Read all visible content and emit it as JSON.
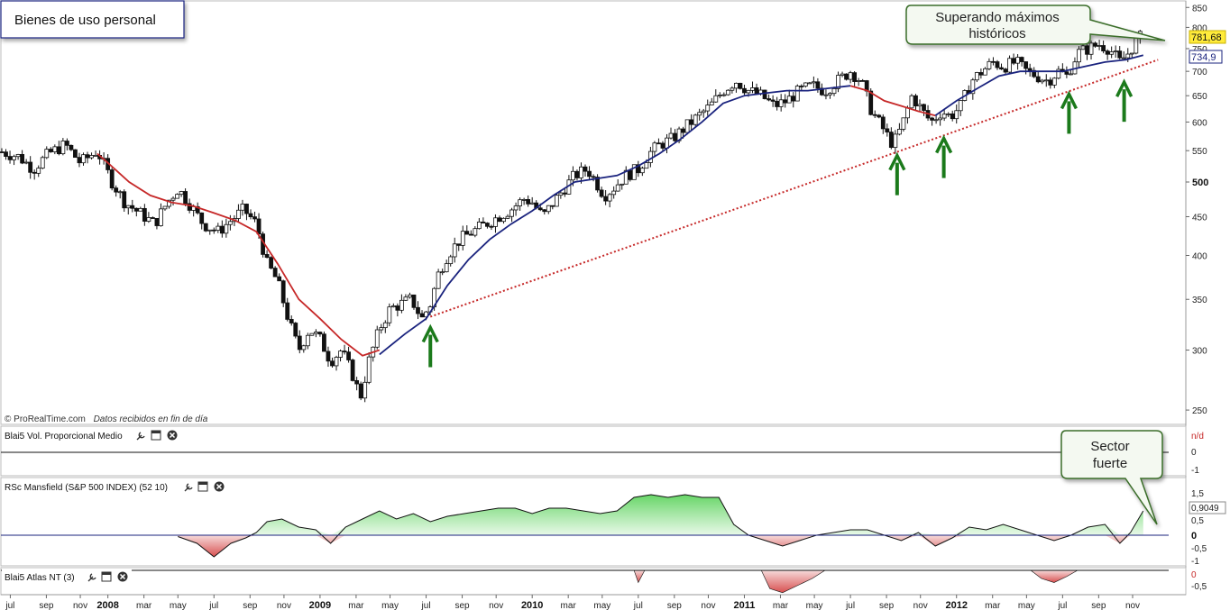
{
  "chart_data": {
    "type": "candlestick",
    "title": "Bienes de uso personal",
    "source_note": "© ProRealTime.com",
    "source_note2": "Datos recibidos en fin de día",
    "price_axis": {
      "scale": "log",
      "ylim": [
        240,
        860
      ],
      "ticks": [
        250,
        300,
        350,
        400,
        450,
        500,
        550,
        600,
        650,
        700,
        750,
        800,
        850
      ],
      "tick_labels": [
        "250",
        "300",
        "350",
        "400",
        "450",
        "500",
        "550",
        "600",
        "650",
        "700",
        "750",
        "800",
        "850"
      ],
      "bold_ticks": [
        "500"
      ]
    },
    "last_price": {
      "label": "781,68",
      "value": 781.68,
      "color": "#ffeb3b"
    },
    "ma_value": {
      "label": "734,9",
      "value": 734.9,
      "color": "#1a237e"
    },
    "x_axis": {
      "start": 2007.5,
      "end": 2013.0,
      "labels": [
        {
          "t": 2007.54,
          "text": "jul"
        },
        {
          "t": 2007.71,
          "text": "sep"
        },
        {
          "t": 2007.87,
          "text": "nov"
        },
        {
          "t": 2008.0,
          "text": "2008",
          "bold": true
        },
        {
          "t": 2008.17,
          "text": "mar"
        },
        {
          "t": 2008.33,
          "text": "may"
        },
        {
          "t": 2008.5,
          "text": "jul"
        },
        {
          "t": 2008.67,
          "text": "sep"
        },
        {
          "t": 2008.83,
          "text": "nov"
        },
        {
          "t": 2009.0,
          "text": "2009",
          "bold": true
        },
        {
          "t": 2009.17,
          "text": "mar"
        },
        {
          "t": 2009.33,
          "text": "may"
        },
        {
          "t": 2009.5,
          "text": "jul"
        },
        {
          "t": 2009.67,
          "text": "sep"
        },
        {
          "t": 2009.83,
          "text": "nov"
        },
        {
          "t": 2010.0,
          "text": "2010",
          "bold": true
        },
        {
          "t": 2010.17,
          "text": "mar"
        },
        {
          "t": 2010.33,
          "text": "may"
        },
        {
          "t": 2010.5,
          "text": "jul"
        },
        {
          "t": 2010.67,
          "text": "sep"
        },
        {
          "t": 2010.83,
          "text": "nov"
        },
        {
          "t": 2011.0,
          "text": "2011",
          "bold": true
        },
        {
          "t": 2011.17,
          "text": "mar"
        },
        {
          "t": 2011.33,
          "text": "may"
        },
        {
          "t": 2011.5,
          "text": "jul"
        },
        {
          "t": 2011.67,
          "text": "sep"
        },
        {
          "t": 2011.83,
          "text": "nov"
        },
        {
          "t": 2012.0,
          "text": "2012",
          "bold": true
        },
        {
          "t": 2012.17,
          "text": "mar"
        },
        {
          "t": 2012.33,
          "text": "may"
        },
        {
          "t": 2012.5,
          "text": "jul"
        },
        {
          "t": 2012.67,
          "text": "sep"
        },
        {
          "t": 2012.83,
          "text": "nov"
        }
      ]
    },
    "price_path": [
      [
        2007.5,
        548
      ],
      [
        2007.58,
        540
      ],
      [
        2007.65,
        520
      ],
      [
        2007.72,
        545
      ],
      [
        2007.8,
        560
      ],
      [
        2007.87,
        530
      ],
      [
        2007.95,
        550
      ],
      [
        2008.02,
        500
      ],
      [
        2008.08,
        470
      ],
      [
        2008.15,
        455
      ],
      [
        2008.22,
        440
      ],
      [
        2008.28,
        470
      ],
      [
        2008.33,
        490
      ],
      [
        2008.38,
        470
      ],
      [
        2008.45,
        440
      ],
      [
        2008.52,
        430
      ],
      [
        2008.58,
        445
      ],
      [
        2008.64,
        460
      ],
      [
        2008.7,
        440
      ],
      [
        2008.75,
        390
      ],
      [
        2008.8,
        370
      ],
      [
        2008.85,
        330
      ],
      [
        2008.9,
        300
      ],
      [
        2008.95,
        320
      ],
      [
        2009.0,
        310
      ],
      [
        2009.05,
        290
      ],
      [
        2009.1,
        300
      ],
      [
        2009.15,
        280
      ],
      [
        2009.19,
        260
      ],
      [
        2009.23,
        290
      ],
      [
        2009.28,
        320
      ],
      [
        2009.33,
        340
      ],
      [
        2009.38,
        345
      ],
      [
        2009.43,
        350
      ],
      [
        2009.48,
        330
      ],
      [
        2009.52,
        345
      ],
      [
        2009.56,
        380
      ],
      [
        2009.6,
        400
      ],
      [
        2009.66,
        420
      ],
      [
        2009.72,
        430
      ],
      [
        2009.78,
        440
      ],
      [
        2009.84,
        450
      ],
      [
        2009.9,
        460
      ],
      [
        2009.96,
        475
      ],
      [
        2010.0,
        470
      ],
      [
        2010.05,
        450
      ],
      [
        2010.1,
        470
      ],
      [
        2010.15,
        490
      ],
      [
        2010.2,
        510
      ],
      [
        2010.26,
        520
      ],
      [
        2010.3,
        500
      ],
      [
        2010.34,
        480
      ],
      [
        2010.38,
        490
      ],
      [
        2010.44,
        510
      ],
      [
        2010.5,
        520
      ],
      [
        2010.55,
        545
      ],
      [
        2010.6,
        560
      ],
      [
        2010.66,
        570
      ],
      [
        2010.72,
        590
      ],
      [
        2010.78,
        610
      ],
      [
        2010.84,
        630
      ],
      [
        2010.9,
        660
      ],
      [
        2010.96,
        680
      ],
      [
        2011.02,
        660
      ],
      [
        2011.08,
        650
      ],
      [
        2011.14,
        630
      ],
      [
        2011.2,
        640
      ],
      [
        2011.26,
        660
      ],
      [
        2011.32,
        670
      ],
      [
        2011.38,
        660
      ],
      [
        2011.44,
        680
      ],
      [
        2011.5,
        700
      ],
      [
        2011.55,
        680
      ],
      [
        2011.6,
        620
      ],
      [
        2011.65,
        590
      ],
      [
        2011.7,
        560
      ],
      [
        2011.74,
        590
      ],
      [
        2011.79,
        650
      ],
      [
        2011.84,
        620
      ],
      [
        2011.88,
        600
      ],
      [
        2011.93,
        620
      ],
      [
        2011.97,
        610
      ],
      [
        2012.02,
        630
      ],
      [
        2012.07,
        680
      ],
      [
        2012.12,
        700
      ],
      [
        2012.17,
        720
      ],
      [
        2012.22,
        710
      ],
      [
        2012.28,
        720
      ],
      [
        2012.33,
        700
      ],
      [
        2012.38,
        690
      ],
      [
        2012.43,
        680
      ],
      [
        2012.48,
        700
      ],
      [
        2012.52,
        690
      ],
      [
        2012.57,
        740
      ],
      [
        2012.62,
        750
      ],
      [
        2012.67,
        760
      ],
      [
        2012.72,
        750
      ],
      [
        2012.77,
        720
      ],
      [
        2012.81,
        740
      ],
      [
        2012.85,
        770
      ],
      [
        2012.88,
        782
      ]
    ],
    "ma_red_path": [
      [
        2007.95,
        545
      ],
      [
        2008.0,
        530
      ],
      [
        2008.1,
        500
      ],
      [
        2008.2,
        480
      ],
      [
        2008.3,
        470
      ],
      [
        2008.4,
        465
      ],
      [
        2008.5,
        455
      ],
      [
        2008.6,
        445
      ],
      [
        2008.7,
        430
      ],
      [
        2008.8,
        390
      ],
      [
        2008.9,
        350
      ],
      [
        2009.0,
        330
      ],
      [
        2009.1,
        310
      ],
      [
        2009.2,
        295
      ],
      [
        2009.28,
        300
      ]
    ],
    "ma_blue_path": [
      [
        2009.28,
        296
      ],
      [
        2009.4,
        315
      ],
      [
        2009.5,
        330
      ],
      [
        2009.6,
        365
      ],
      [
        2009.7,
        395
      ],
      [
        2009.8,
        420
      ],
      [
        2009.9,
        440
      ],
      [
        2010.0,
        458
      ],
      [
        2010.1,
        480
      ],
      [
        2010.2,
        500
      ],
      [
        2010.3,
        505
      ],
      [
        2010.4,
        510
      ],
      [
        2010.5,
        525
      ],
      [
        2010.6,
        545
      ],
      [
        2010.7,
        570
      ],
      [
        2010.8,
        600
      ],
      [
        2010.9,
        635
      ],
      [
        2011.0,
        650
      ],
      [
        2011.1,
        655
      ],
      [
        2011.2,
        660
      ],
      [
        2011.3,
        660
      ],
      [
        2011.4,
        665
      ],
      [
        2011.5,
        670
      ]
    ],
    "ma_red_path2": [
      [
        2011.5,
        670
      ],
      [
        2011.58,
        660
      ],
      [
        2011.66,
        640
      ],
      [
        2011.74,
        630
      ],
      [
        2011.82,
        620
      ],
      [
        2011.9,
        612
      ]
    ],
    "ma_blue_path2": [
      [
        2011.9,
        612
      ],
      [
        2012.0,
        640
      ],
      [
        2012.1,
        665
      ],
      [
        2012.2,
        690
      ],
      [
        2012.3,
        700
      ],
      [
        2012.4,
        700
      ],
      [
        2012.5,
        700
      ],
      [
        2012.6,
        710
      ],
      [
        2012.7,
        720
      ],
      [
        2012.8,
        725
      ],
      [
        2012.88,
        735
      ]
    ],
    "trendline": {
      "from": [
        2009.52,
        332
      ],
      "to": [
        2012.95,
        725
      ],
      "color": "#c62828"
    },
    "arrows": [
      {
        "t": 2009.52,
        "p": 332
      },
      {
        "t": 2011.72,
        "p": 560
      },
      {
        "t": 2011.94,
        "p": 590
      },
      {
        "t": 2012.53,
        "p": 675
      },
      {
        "t": 2012.79,
        "p": 700
      }
    ],
    "callouts": [
      {
        "lines": [
          "Superando máximos",
          "históricos"
        ]
      },
      {
        "lines": [
          "Sector",
          "fuerte"
        ]
      }
    ],
    "panels": [
      {
        "label": "Blai5 Vol. Proporcional Medio",
        "ticks": [
          "n/d",
          "0",
          "-1"
        ]
      },
      {
        "label": "RSc Mansfield (S&P 500 INDEX) (52 10)",
        "ticks": [
          "1,5",
          "0,9049",
          "0,5",
          "0",
          "-0,5",
          "-1"
        ],
        "last_value": "0,9049",
        "series": [
          [
            2008.33,
            -0.05
          ],
          [
            2008.42,
            -0.3
          ],
          [
            2008.5,
            -0.8
          ],
          [
            2008.58,
            -0.3
          ],
          [
            2008.65,
            -0.1
          ],
          [
            2008.7,
            0.1
          ],
          [
            2008.75,
            0.5
          ],
          [
            2008.82,
            0.6
          ],
          [
            2008.9,
            0.3
          ],
          [
            2008.98,
            0.2
          ],
          [
            2009.05,
            -0.3
          ],
          [
            2009.12,
            0.3
          ],
          [
            2009.2,
            0.6
          ],
          [
            2009.28,
            0.9
          ],
          [
            2009.36,
            0.6
          ],
          [
            2009.44,
            0.8
          ],
          [
            2009.52,
            0.5
          ],
          [
            2009.6,
            0.7
          ],
          [
            2009.68,
            0.8
          ],
          [
            2009.76,
            0.9
          ],
          [
            2009.84,
            1.0
          ],
          [
            2009.92,
            1.0
          ],
          [
            2010.0,
            0.8
          ],
          [
            2010.08,
            1.0
          ],
          [
            2010.16,
            1.0
          ],
          [
            2010.24,
            0.9
          ],
          [
            2010.32,
            0.8
          ],
          [
            2010.4,
            0.9
          ],
          [
            2010.48,
            1.4
          ],
          [
            2010.56,
            1.5
          ],
          [
            2010.64,
            1.4
          ],
          [
            2010.72,
            1.5
          ],
          [
            2010.8,
            1.4
          ],
          [
            2010.88,
            1.4
          ],
          [
            2010.95,
            0.4
          ],
          [
            2011.02,
            0.0
          ],
          [
            2011.1,
            -0.2
          ],
          [
            2011.18,
            -0.4
          ],
          [
            2011.26,
            -0.2
          ],
          [
            2011.34,
            0.0
          ],
          [
            2011.42,
            0.1
          ],
          [
            2011.5,
            0.2
          ],
          [
            2011.58,
            0.2
          ],
          [
            2011.66,
            0.0
          ],
          [
            2011.74,
            -0.2
          ],
          [
            2011.82,
            0.1
          ],
          [
            2011.9,
            -0.4
          ],
          [
            2011.98,
            -0.1
          ],
          [
            2012.06,
            0.3
          ],
          [
            2012.14,
            0.2
          ],
          [
            2012.22,
            0.4
          ],
          [
            2012.3,
            0.2
          ],
          [
            2012.38,
            0.0
          ],
          [
            2012.46,
            -0.2
          ],
          [
            2012.54,
            0.0
          ],
          [
            2012.62,
            0.3
          ],
          [
            2012.7,
            0.4
          ],
          [
            2012.77,
            -0.3
          ],
          [
            2012.82,
            0.1
          ],
          [
            2012.88,
            0.9
          ]
        ]
      },
      {
        "label": "Blai5 Atlas NT (3)",
        "ticks": [
          "0",
          "-0,5"
        ],
        "series": [
          [
            2010.48,
            0
          ],
          [
            2010.5,
            -0.3
          ],
          [
            2010.53,
            0
          ],
          [
            2011.08,
            0
          ],
          [
            2011.12,
            -0.45
          ],
          [
            2011.18,
            -0.55
          ],
          [
            2011.26,
            -0.35
          ],
          [
            2011.32,
            -0.2
          ],
          [
            2011.38,
            0
          ],
          [
            2012.35,
            0
          ],
          [
            2012.4,
            -0.2
          ],
          [
            2012.46,
            -0.3
          ],
          [
            2012.52,
            -0.15
          ],
          [
            2012.57,
            0
          ]
        ]
      }
    ],
    "colors": {
      "candle": "#111111",
      "ma_red": "#c62828",
      "ma_blue": "#1a237e",
      "positive_fill": "#8be08b",
      "negative_fill": "#e08080",
      "arrow": "#1b7a1b",
      "callout_border": "#3b6e2a",
      "callout_fill": "#f4f9f1"
    }
  }
}
